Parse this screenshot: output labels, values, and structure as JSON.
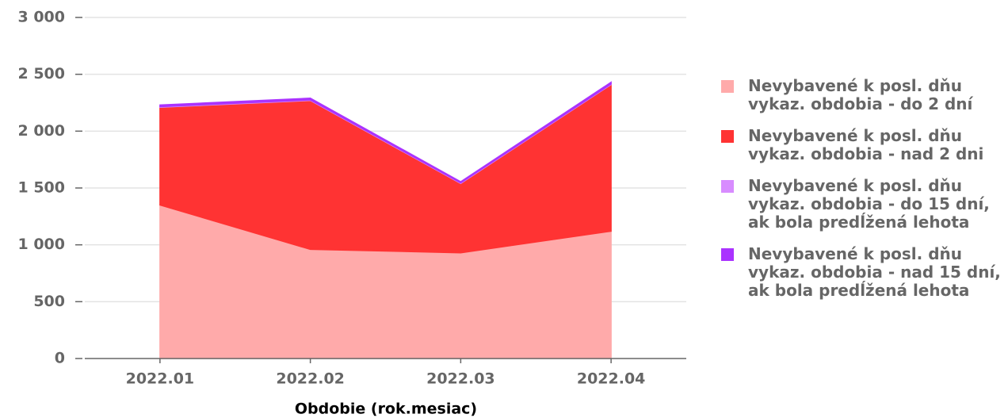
{
  "chart_data": {
    "type": "area",
    "stacked": true,
    "x_label": "Obdobie (rok.mesiac)",
    "categories": [
      "2022.01",
      "2022.02",
      "2022.03",
      "2022.04"
    ],
    "series": [
      {
        "name": "Nevybavené k posl. dňu vykaz. obdobia - do 2 dní",
        "color": "#ffaaaa",
        "values": [
          1350,
          960,
          930,
          1120
        ]
      },
      {
        "name": "Nevybavené k posl. dňu vykaz. obdobia - nad 2 dni",
        "color": "#ff3333",
        "values": [
          860,
          1310,
          610,
          1290
        ]
      },
      {
        "name": "Nevybavené k posl. dňu vykaz. obdobia - do 15 dní, ak bola predĺžená lehota",
        "color": "#d88cff",
        "values": [
          5,
          5,
          5,
          5
        ]
      },
      {
        "name": "Nevybavené k posl. dňu vykaz. obdobia - nad 15 dní, ak bola predĺžená lehota",
        "color": "#aa33ff",
        "values": [
          15,
          15,
          10,
          15
        ]
      }
    ],
    "ylim": [
      0,
      3000
    ],
    "yticks": [
      0,
      500,
      {
        "value": 1000,
        "label": "1 000"
      },
      {
        "value": 1500,
        "label": "1 500"
      },
      {
        "value": 2000,
        "label": "2 000"
      },
      {
        "value": 2500,
        "label": "2 500"
      },
      {
        "value": 3000,
        "label": "3 000"
      }
    ],
    "grid": true,
    "legend": "right"
  }
}
